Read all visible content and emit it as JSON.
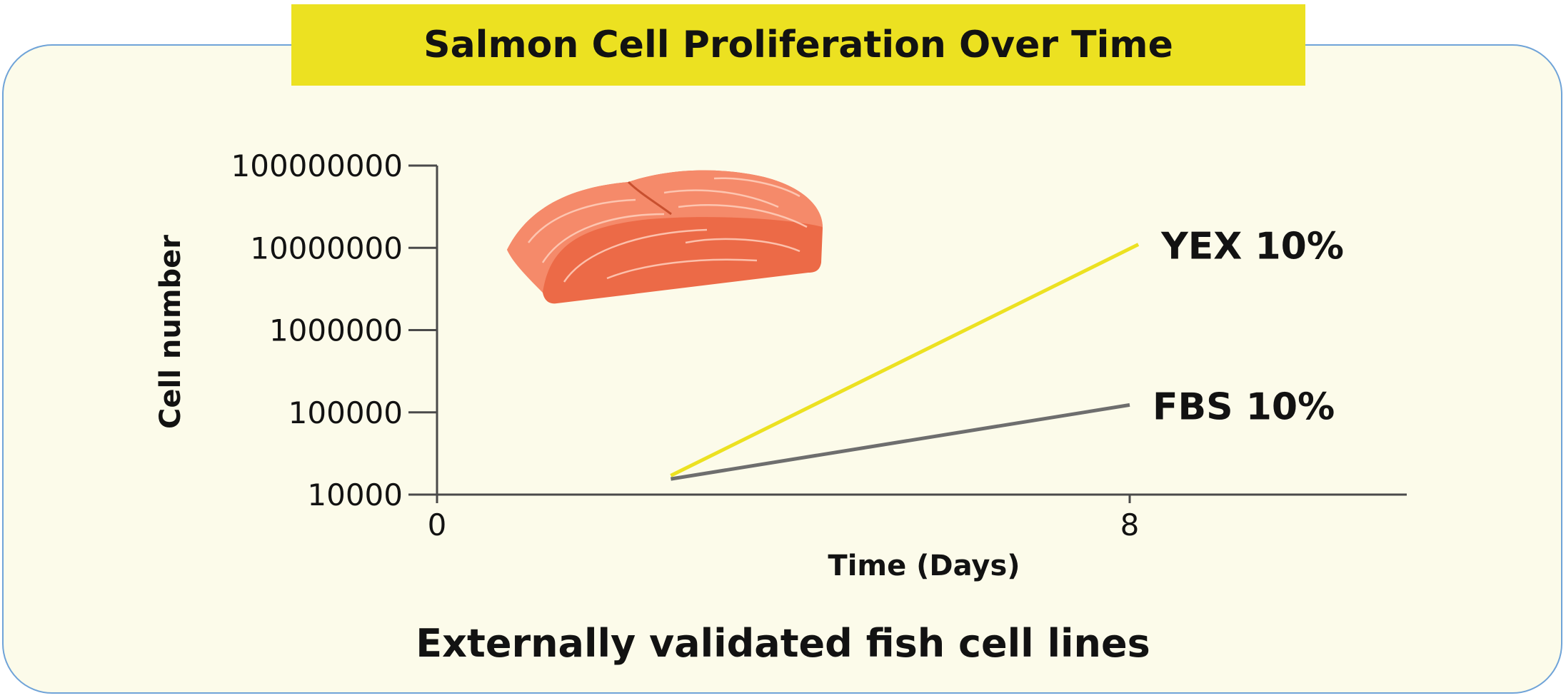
{
  "header": {
    "title": "Salmon Cell Proliferation Over Time"
  },
  "footer": {
    "caption": "Externally validated fish cell lines"
  },
  "chart_data": {
    "type": "line",
    "title": "Salmon Cell Proliferation Over Time",
    "xlabel": "Time (Days)",
    "ylabel": "Cell number",
    "y_scale": "log",
    "xlim": [
      0,
      11.2
    ],
    "ylim": [
      10000,
      100000000
    ],
    "x_ticks": [
      0,
      8
    ],
    "x_tick_labels": [
      "0",
      "8"
    ],
    "y_ticks": [
      10000,
      100000,
      1000000,
      10000000,
      100000000
    ],
    "y_tick_labels": [
      "10000",
      "100000",
      "1000000",
      "10000000",
      "100000000"
    ],
    "grid": false,
    "legend": "inline labels at line ends",
    "series": [
      {
        "name": "YEX 10%",
        "color": "#ece121",
        "x": [
          2.7,
          8.1
        ],
        "y": [
          17000,
          11000000
        ]
      },
      {
        "name": "FBS 10%",
        "color": "#6e6e6e",
        "x": [
          2.7,
          8.0
        ],
        "y": [
          15500,
          123000
        ]
      }
    ]
  },
  "illustration": {
    "icon": "salmon-fillet-icon",
    "colors": {
      "flesh": "#ec6a47",
      "top": "#f58a6a",
      "lines": "#ffd7c8"
    }
  },
  "colors": {
    "card_bg": "#fcfbea",
    "card_border": "#6fa3d8",
    "title_bg": "#ece121",
    "text": "#121212"
  }
}
